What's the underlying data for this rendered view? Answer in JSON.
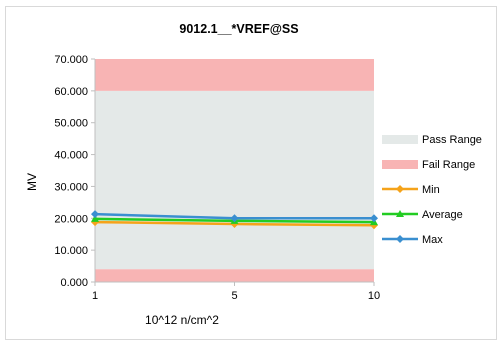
{
  "chart_data": {
    "type": "line",
    "title": "9012.1__*VREF@SS",
    "xlabel": "10^12 n/cm^2",
    "ylabel": "MV",
    "categories": [
      "1",
      "5",
      "10"
    ],
    "ylim": [
      0,
      70
    ],
    "yticks": [
      "0.000",
      "10.000",
      "20.000",
      "30.000",
      "40.000",
      "50.000",
      "60.000",
      "70.000"
    ],
    "bands": [
      {
        "name": "Pass Range",
        "from": 4,
        "to": 60,
        "color": "#e4e9e8"
      },
      {
        "name": "Fail Range",
        "from": 60,
        "to": 70,
        "color": "#f8b4b4"
      },
      {
        "name": "Fail Range",
        "from": 0,
        "to": 4,
        "color": "#f8b4b4"
      }
    ],
    "series": [
      {
        "name": "Min",
        "values": [
          18.8,
          18.2,
          17.8
        ],
        "color": "#f5a31a",
        "marker": "diamond"
      },
      {
        "name": "Average",
        "values": [
          19.8,
          19.2,
          18.8
        ],
        "color": "#22cc22",
        "marker": "triangle"
      },
      {
        "name": "Max",
        "values": [
          21.3,
          20.0,
          20.0
        ],
        "color": "#3a8fd0",
        "marker": "diamond"
      }
    ],
    "grid": false,
    "legend": "right"
  }
}
